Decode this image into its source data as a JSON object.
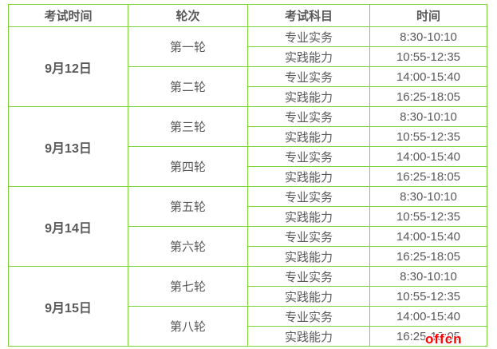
{
  "colors": {
    "border": "#7bd335",
    "text": "#595959",
    "watermark": "#fe0000",
    "background": "#ffffff"
  },
  "watermark": {
    "text": "offcn"
  },
  "table": {
    "headers": [
      "考试时间",
      "轮次",
      "考试科目",
      "时间"
    ],
    "days": [
      {
        "date": "9月12日",
        "rounds": [
          {
            "name": "第一轮",
            "sessions": [
              {
                "subject": "专业实务",
                "time": "8:30-10:10"
              },
              {
                "subject": "实践能力",
                "time": "10:55-12:35"
              }
            ]
          },
          {
            "name": "第二轮",
            "sessions": [
              {
                "subject": "专业实务",
                "time": "14:00-15:40"
              },
              {
                "subject": "实践能力",
                "time": "16:25-18:05"
              }
            ]
          }
        ]
      },
      {
        "date": "9月13日",
        "rounds": [
          {
            "name": "第三轮",
            "sessions": [
              {
                "subject": "专业实务",
                "time": "8:30-10:10"
              },
              {
                "subject": "实践能力",
                "time": "10:55-12:35"
              }
            ]
          },
          {
            "name": "第四轮",
            "sessions": [
              {
                "subject": "专业实务",
                "time": "14:00-15:40"
              },
              {
                "subject": "实践能力",
                "time": "16:25-18:05"
              }
            ]
          }
        ]
      },
      {
        "date": "9月14日",
        "rounds": [
          {
            "name": "第五轮",
            "sessions": [
              {
                "subject": "专业实务",
                "time": "8:30-10:10"
              },
              {
                "subject": "实践能力",
                "time": "10:55-12:35"
              }
            ]
          },
          {
            "name": "第六轮",
            "sessions": [
              {
                "subject": "专业实务",
                "time": "14:00-15:40"
              },
              {
                "subject": "实践能力",
                "time": "16:25-18:05"
              }
            ]
          }
        ]
      },
      {
        "date": "9月15日",
        "rounds": [
          {
            "name": "第七轮",
            "sessions": [
              {
                "subject": "专业实务",
                "time": "8:30-10:10"
              },
              {
                "subject": "实践能力",
                "time": "10:55-12:35"
              }
            ]
          },
          {
            "name": "第八轮",
            "sessions": [
              {
                "subject": "专业实务",
                "time": "14:00-15:40"
              },
              {
                "subject": "实践能力",
                "time": "16:25-18:05"
              }
            ]
          }
        ]
      }
    ]
  },
  "chart_data": {
    "type": "table",
    "title": "",
    "columns": [
      "考试时间",
      "轮次",
      "考试科目",
      "时间"
    ],
    "rows": [
      [
        "9月12日",
        "第一轮",
        "专业实务",
        "8:30-10:10"
      ],
      [
        "9月12日",
        "第一轮",
        "实践能力",
        "10:55-12:35"
      ],
      [
        "9月12日",
        "第二轮",
        "专业实务",
        "14:00-15:40"
      ],
      [
        "9月12日",
        "第二轮",
        "实践能力",
        "16:25-18:05"
      ],
      [
        "9月13日",
        "第三轮",
        "专业实务",
        "8:30-10:10"
      ],
      [
        "9月13日",
        "第三轮",
        "实践能力",
        "10:55-12:35"
      ],
      [
        "9月13日",
        "第四轮",
        "专业实务",
        "14:00-15:40"
      ],
      [
        "9月13日",
        "第四轮",
        "实践能力",
        "16:25-18:05"
      ],
      [
        "9月14日",
        "第五轮",
        "专业实务",
        "8:30-10:10"
      ],
      [
        "9月14日",
        "第五轮",
        "实践能力",
        "10:55-12:35"
      ],
      [
        "9月14日",
        "第六轮",
        "专业实务",
        "14:00-15:40"
      ],
      [
        "9月14日",
        "第六轮",
        "实践能力",
        "16:25-18:05"
      ],
      [
        "9月15日",
        "第七轮",
        "专业实务",
        "8:30-10:10"
      ],
      [
        "9月15日",
        "第七轮",
        "实践能力",
        "10:55-12:35"
      ],
      [
        "9月15日",
        "第八轮",
        "专业实务",
        "14:00-15:40"
      ],
      [
        "9月15日",
        "第八轮",
        "实践能力",
        "16:25-18:05"
      ]
    ],
    "merged_columns": {
      "考试时间": "each date spans 4 rows",
      "轮次": "each round spans 2 rows"
    },
    "layout": {
      "border_color": "#7bd335",
      "grid": "on"
    }
  }
}
